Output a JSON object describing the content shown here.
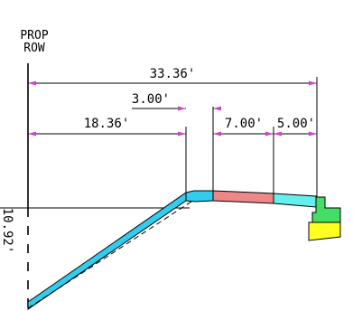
{
  "labels": {
    "prop_line1": "PROP",
    "prop_line2": "ROW"
  },
  "dimensions": {
    "total_width": "33.36'",
    "offset_3": "3.00'",
    "left_width": "18.36'",
    "width_7": "7.00'",
    "width_5": "5.00'",
    "height_left": "10.92'"
  },
  "colors": {
    "slope_fill": "#33ccee",
    "pavement_red": "#ee8888",
    "shoulder_cyan": "#66eeee",
    "curb_green": "#44dd66",
    "base_yellow": "#ffff22",
    "arrow_magenta": "#cc44cc",
    "line": "#000000"
  }
}
